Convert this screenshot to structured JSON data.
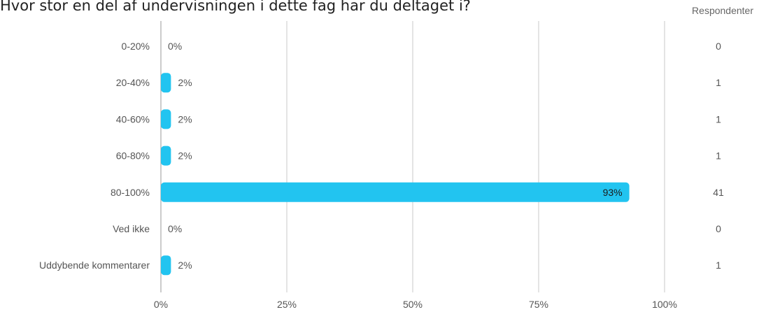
{
  "title": "Hvor stor en del af undervisningen i dette fag har du deltaget i?",
  "respondents_header": "Respondenter",
  "colors": {
    "bar": "#22c4f0",
    "grid": "#c8c8c8",
    "text": "#555555"
  },
  "chart_data": {
    "type": "bar",
    "orientation": "horizontal",
    "categories": [
      "0-20%",
      "20-40%",
      "40-60%",
      "60-80%",
      "80-100%",
      "Ved ikke",
      "Uddybende kommentarer"
    ],
    "values": [
      0,
      2,
      2,
      2,
      93,
      0,
      2
    ],
    "value_labels": [
      "0%",
      "2%",
      "2%",
      "2%",
      "93%",
      "0%",
      "2%"
    ],
    "respondents": [
      0,
      1,
      1,
      1,
      41,
      0,
      1
    ],
    "xlim": [
      0,
      100
    ],
    "ticks": [
      0,
      25,
      50,
      75,
      100
    ],
    "tick_labels": [
      "0%",
      "25%",
      "50%",
      "75%",
      "100%"
    ],
    "grid": true
  }
}
